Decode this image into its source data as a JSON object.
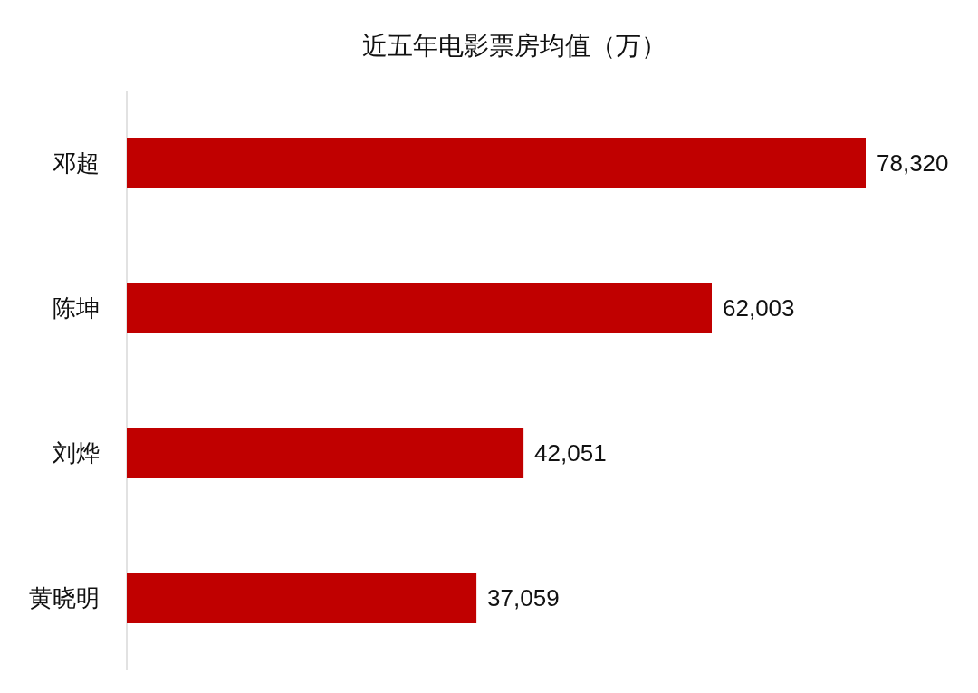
{
  "chart_data": {
    "type": "bar",
    "orientation": "horizontal",
    "title": "近五年电影票房均值（万）",
    "categories": [
      "邓超",
      "陈坤",
      "刘烨",
      "黄晓明"
    ],
    "values": [
      78320,
      62003,
      42051,
      37059
    ],
    "value_labels": [
      "78,320",
      "62,003",
      "42,051",
      "37,059"
    ],
    "color": "#c00000"
  }
}
